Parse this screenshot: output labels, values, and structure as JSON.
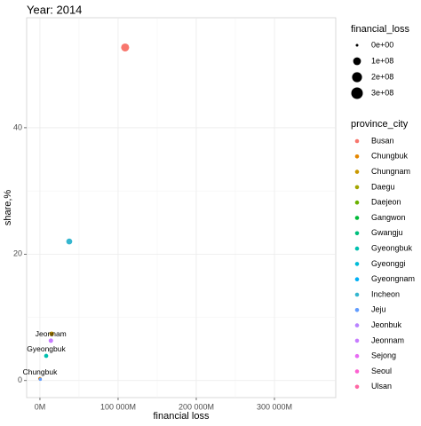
{
  "chart_data": {
    "type": "scatter",
    "title": "Year: 2014",
    "x_label": "financial loss",
    "y_label": "share,%",
    "xlim": [
      -17000,
      378400
    ],
    "ylim": [
      -2.7,
      57.4
    ],
    "xticks": [
      {
        "value": 0,
        "label": "0M"
      },
      {
        "value": 100000,
        "label": "100 000M"
      },
      {
        "value": 200000,
        "label": "200 000M"
      },
      {
        "value": 300000,
        "label": "300 000M"
      }
    ],
    "yticks": [
      0,
      20,
      40
    ],
    "grid": true,
    "size_legend_title": "financial_loss",
    "size_ticks": [
      {
        "value": 0,
        "label": "0e+00"
      },
      {
        "value": 100000000,
        "label": "1e+08"
      },
      {
        "value": 200000000,
        "label": "2e+08"
      },
      {
        "value": 300000000,
        "label": "3e+08"
      }
    ],
    "color_legend_title": "province_city",
    "series": [
      {
        "name": "Busan",
        "color": "#F8766D",
        "x": [
          109000
        ],
        "y": [
          52.7
        ],
        "size": [
          110000000
        ]
      },
      {
        "name": "Chungbuk",
        "color": "#E58700",
        "x": [
          0
        ],
        "y": [
          0.3
        ],
        "size": [
          2000000
        ],
        "labeled": true
      },
      {
        "name": "Chungnam",
        "color": "#C99800",
        "x": [
          15000
        ],
        "y": [
          7.4
        ],
        "size": [
          15000000
        ]
      },
      {
        "name": "Daegu",
        "color": "#A3A500",
        "x": [],
        "y": [],
        "size": []
      },
      {
        "name": "Daejeon",
        "color": "#6BB100",
        "x": [],
        "y": [],
        "size": []
      },
      {
        "name": "Gangwon",
        "color": "#00BA38",
        "x": [],
        "y": [],
        "size": []
      },
      {
        "name": "Gwangju",
        "color": "#00BF7D",
        "x": [],
        "y": [],
        "size": []
      },
      {
        "name": "Gyeongbuk",
        "color": "#00C0AF",
        "x": [
          8000
        ],
        "y": [
          3.9
        ],
        "size": [
          8000000
        ],
        "labeled": true
      },
      {
        "name": "Gyeonggi",
        "color": "#00BCD8",
        "x": [],
        "y": [],
        "size": []
      },
      {
        "name": "Gyeongnam",
        "color": "#00B0F6",
        "x": [],
        "y": [],
        "size": []
      },
      {
        "name": "Incheon",
        "color": "#35B6CF",
        "x": [
          37500
        ],
        "y": [
          22.0
        ],
        "size": [
          40000000
        ]
      },
      {
        "name": "Jeju",
        "color": "#619CFF",
        "x": [
          500
        ],
        "y": [
          0.2
        ],
        "size": [
          1000000
        ]
      },
      {
        "name": "Jeonbuk",
        "color": "#B983FF",
        "x": [],
        "y": [],
        "size": []
      },
      {
        "name": "Jeonnam",
        "color": "#C77CFF",
        "x": [
          14000
        ],
        "y": [
          6.3
        ],
        "size": [
          12000000
        ],
        "labeled": true
      },
      {
        "name": "Sejong",
        "color": "#E76BF3",
        "x": [],
        "y": [],
        "size": []
      },
      {
        "name": "Seoul",
        "color": "#FD61D1",
        "x": [],
        "y": [],
        "size": []
      },
      {
        "name": "Ulsan",
        "color": "#FF67A4",
        "x": [],
        "y": [],
        "size": []
      }
    ]
  }
}
